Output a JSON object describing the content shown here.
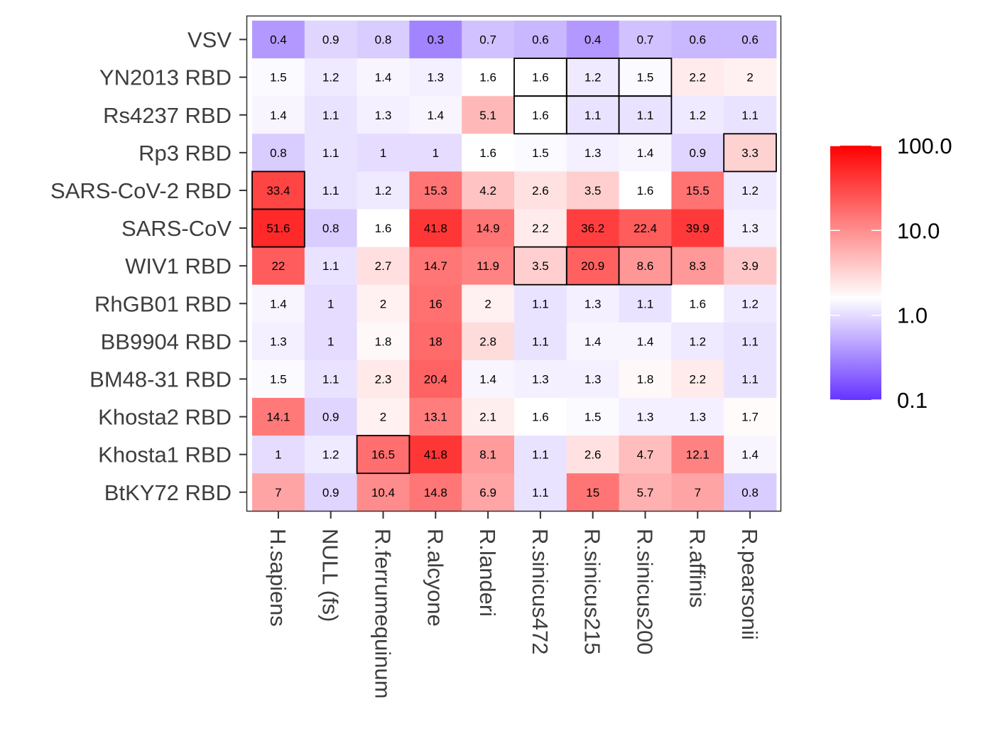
{
  "chart_data": {
    "type": "heatmap",
    "title": "",
    "xlabel": "",
    "ylabel": "",
    "x_categories": [
      "H.sapiens",
      "NULL (fs)",
      "R.ferrumequinum",
      "R.alcyone",
      "R.landeri",
      "R.sinicus472",
      "R.sinicus215",
      "R.sinicus200",
      "R.affinis",
      "R.pearsonii"
    ],
    "y_categories": [
      "VSV",
      "YN2013 RBD",
      "Rs4237 RBD",
      "Rp3 RBD",
      "SARS-CoV-2 RBD",
      "SARS-CoV",
      "WIV1 RBD",
      "RhGB01 RBD",
      "BB9904 RBD",
      "BM48-31 RBD",
      "Khosta2 RBD",
      "Khosta1 RBD",
      "BtKY72 RBD"
    ],
    "values": [
      [
        0.4,
        0.9,
        0.8,
        0.3,
        0.7,
        0.6,
        0.4,
        0.7,
        0.6,
        0.6
      ],
      [
        1.5,
        1.2,
        1.4,
        1.3,
        1.6,
        1.6,
        1.2,
        1.5,
        2.2,
        2
      ],
      [
        1.4,
        1.1,
        1.3,
        1.4,
        5.1,
        1.6,
        1.1,
        1.1,
        1.2,
        1.1
      ],
      [
        0.8,
        1.1,
        1,
        1,
        1.6,
        1.5,
        1.3,
        1.4,
        0.9,
        3.3
      ],
      [
        33.4,
        1.1,
        1.2,
        15.3,
        4.2,
        2.6,
        3.5,
        1.6,
        15.5,
        1.2
      ],
      [
        51.6,
        0.8,
        1.6,
        41.8,
        14.9,
        2.2,
        36.2,
        22.4,
        39.9,
        1.3
      ],
      [
        22,
        1.1,
        2.7,
        14.7,
        11.9,
        3.5,
        20.9,
        8.6,
        8.3,
        3.9
      ],
      [
        1.4,
        1,
        2,
        16,
        2,
        1.1,
        1.3,
        1.1,
        1.6,
        1.2
      ],
      [
        1.3,
        1,
        1.8,
        18,
        2.8,
        1.1,
        1.4,
        1.4,
        1.2,
        1.1
      ],
      [
        1.5,
        1.1,
        2.3,
        20.4,
        1.4,
        1.3,
        1.3,
        1.8,
        2.2,
        1.1
      ],
      [
        14.1,
        0.9,
        2,
        13.1,
        2.1,
        1.6,
        1.5,
        1.3,
        1.3,
        1.7
      ],
      [
        1,
        1.2,
        16.5,
        41.8,
        8.1,
        1.1,
        2.6,
        4.7,
        12.1,
        1.4
      ],
      [
        7,
        0.9,
        10.4,
        14.8,
        6.9,
        1.1,
        15,
        5.7,
        7,
        0.8
      ]
    ],
    "value_labels": [
      [
        "0.4",
        "0.9",
        "0.8",
        "0.3",
        "0.7",
        "0.6",
        "0.4",
        "0.7",
        "0.6",
        "0.6"
      ],
      [
        "1.5",
        "1.2",
        "1.4",
        "1.3",
        "1.6",
        "1.6",
        "1.2",
        "1.5",
        "2.2",
        "2"
      ],
      [
        "1.4",
        "1.1",
        "1.3",
        "1.4",
        "5.1",
        "1.6",
        "1.1",
        "1.1",
        "1.2",
        "1.1"
      ],
      [
        "0.8",
        "1.1",
        "1",
        "1",
        "1.6",
        "1.5",
        "1.3",
        "1.4",
        "0.9",
        "3.3"
      ],
      [
        "33.4",
        "1.1",
        "1.2",
        "15.3",
        "4.2",
        "2.6",
        "3.5",
        "1.6",
        "15.5",
        "1.2"
      ],
      [
        "51.6",
        "0.8",
        "1.6",
        "41.8",
        "14.9",
        "2.2",
        "36.2",
        "22.4",
        "39.9",
        "1.3"
      ],
      [
        "22",
        "1.1",
        "2.7",
        "14.7",
        "11.9",
        "3.5",
        "20.9",
        "8.6",
        "8.3",
        "3.9"
      ],
      [
        "1.4",
        "1",
        "2",
        "16",
        "2",
        "1.1",
        "1.3",
        "1.1",
        "1.6",
        "1.2"
      ],
      [
        "1.3",
        "1",
        "1.8",
        "18",
        "2.8",
        "1.1",
        "1.4",
        "1.4",
        "1.2",
        "1.1"
      ],
      [
        "1.5",
        "1.1",
        "2.3",
        "20.4",
        "1.4",
        "1.3",
        "1.3",
        "1.8",
        "2.2",
        "1.1"
      ],
      [
        "14.1",
        "0.9",
        "2",
        "13.1",
        "2.1",
        "1.6",
        "1.5",
        "1.3",
        "1.3",
        "1.7"
      ],
      [
        "1",
        "1.2",
        "16.5",
        "41.8",
        "8.1",
        "1.1",
        "2.6",
        "4.7",
        "12.1",
        "1.4"
      ],
      [
        "7",
        "0.9",
        "10.4",
        "14.8",
        "6.9",
        "1.1",
        "15",
        "5.7",
        "7",
        "0.8"
      ]
    ],
    "highlighted_cells": [
      {
        "row": "YN2013 RBD",
        "col": "R.sinicus472"
      },
      {
        "row": "YN2013 RBD",
        "col": "R.sinicus215"
      },
      {
        "row": "YN2013 RBD",
        "col": "R.sinicus200"
      },
      {
        "row": "Rs4237 RBD",
        "col": "R.sinicus472"
      },
      {
        "row": "Rs4237 RBD",
        "col": "R.sinicus215"
      },
      {
        "row": "Rs4237 RBD",
        "col": "R.sinicus200"
      },
      {
        "row": "Rp3 RBD",
        "col": "R.pearsonii"
      },
      {
        "row": "SARS-CoV-2 RBD",
        "col": "H.sapiens"
      },
      {
        "row": "SARS-CoV",
        "col": "H.sapiens"
      },
      {
        "row": "WIV1 RBD",
        "col": "R.sinicus472"
      },
      {
        "row": "WIV1 RBD",
        "col": "R.sinicus215"
      },
      {
        "row": "WIV1 RBD",
        "col": "R.sinicus200"
      },
      {
        "row": "Khosta1 RBD",
        "col": "R.ferrumequinum"
      }
    ],
    "color_scale": {
      "type": "log",
      "domain": [
        0.1,
        100
      ],
      "midpoint": 1.6,
      "low_color": "#6633ff",
      "mid_color": "#ffffff",
      "high_color": "#ff0000"
    },
    "legend": {
      "placement": "right",
      "ticks": [
        0.1,
        1,
        10,
        100
      ],
      "tick_labels": [
        "0.1",
        "1.0",
        "10.0",
        "100.0"
      ]
    },
    "grid": false
  }
}
